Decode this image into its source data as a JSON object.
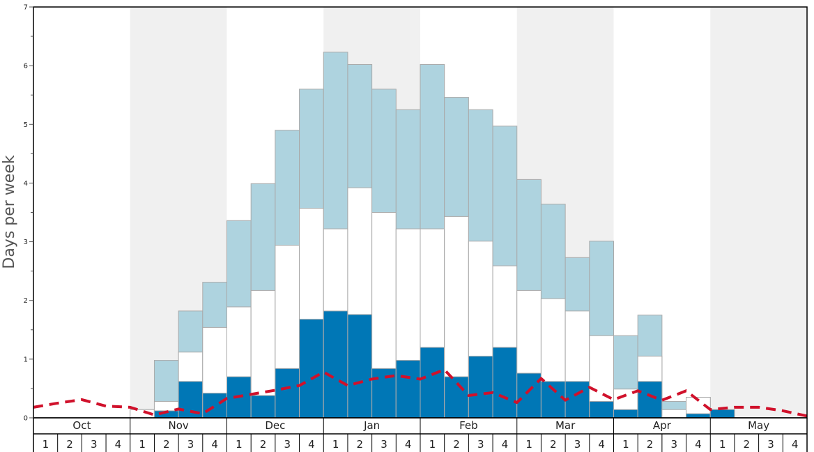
{
  "chart_data": {
    "type": "bar",
    "ylabel": "Days per week",
    "ylim": [
      0,
      7
    ],
    "yticks": [
      0,
      1,
      2,
      3,
      4,
      5,
      6,
      7
    ],
    "months": [
      "Oct",
      "Nov",
      "Dec",
      "Jan",
      "Feb",
      "Mar",
      "Apr",
      "May"
    ],
    "weeks_per_month": [
      "1",
      "2",
      "3",
      "4"
    ],
    "colors": {
      "dark": "#0077b6",
      "white": "#ffffff",
      "light": "#aed3df",
      "line": "#d0112b",
      "band": "#f0f0f0"
    },
    "series": [
      {
        "values": [
          0,
          0,
          0,
          0,
          0,
          0.12,
          0.62,
          0.42,
          0.7,
          0.38,
          0.84,
          1.68,
          1.82,
          1.76,
          0.84,
          0.98,
          1.2,
          0.7,
          1.05,
          1.2,
          0.76,
          0.62,
          0.62,
          0.28,
          0.14,
          0.62,
          0,
          0.07,
          0.14,
          0,
          0,
          0
        ]
      },
      {
        "values": [
          0,
          0,
          0,
          0,
          0.14,
          0.28,
          1.12,
          1.54,
          1.89,
          2.17,
          2.94,
          3.57,
          3.22,
          3.92,
          3.5,
          3.22,
          3.22,
          3.43,
          3.01,
          2.59,
          2.17,
          2.03,
          1.82,
          1.4,
          0.49,
          1.05,
          0.14,
          0.35,
          0.14,
          0,
          0,
          0
        ]
      },
      {
        "values": [
          0,
          0,
          0,
          0,
          0.14,
          0.98,
          1.82,
          2.31,
          3.36,
          3.99,
          4.9,
          5.6,
          6.23,
          6.02,
          5.6,
          5.25,
          6.02,
          5.46,
          5.25,
          4.97,
          4.06,
          3.64,
          2.73,
          3.01,
          1.4,
          1.75,
          0.28,
          0.35,
          0.14,
          0,
          0,
          0
        ]
      },
      {
        "values": [
          0.18,
          0.25,
          0.31,
          0.2,
          0.18,
          0.05,
          0.15,
          0.07,
          0.33,
          0.4,
          0.47,
          0.55,
          0.78,
          0.55,
          0.66,
          0.72,
          0.66,
          0.82,
          0.38,
          0.43,
          0.26,
          0.67,
          0.3,
          0.52,
          0.31,
          0.46,
          0.3,
          0.46,
          0.14,
          0.18,
          0.18,
          0.12,
          0.03
        ]
      }
    ]
  }
}
